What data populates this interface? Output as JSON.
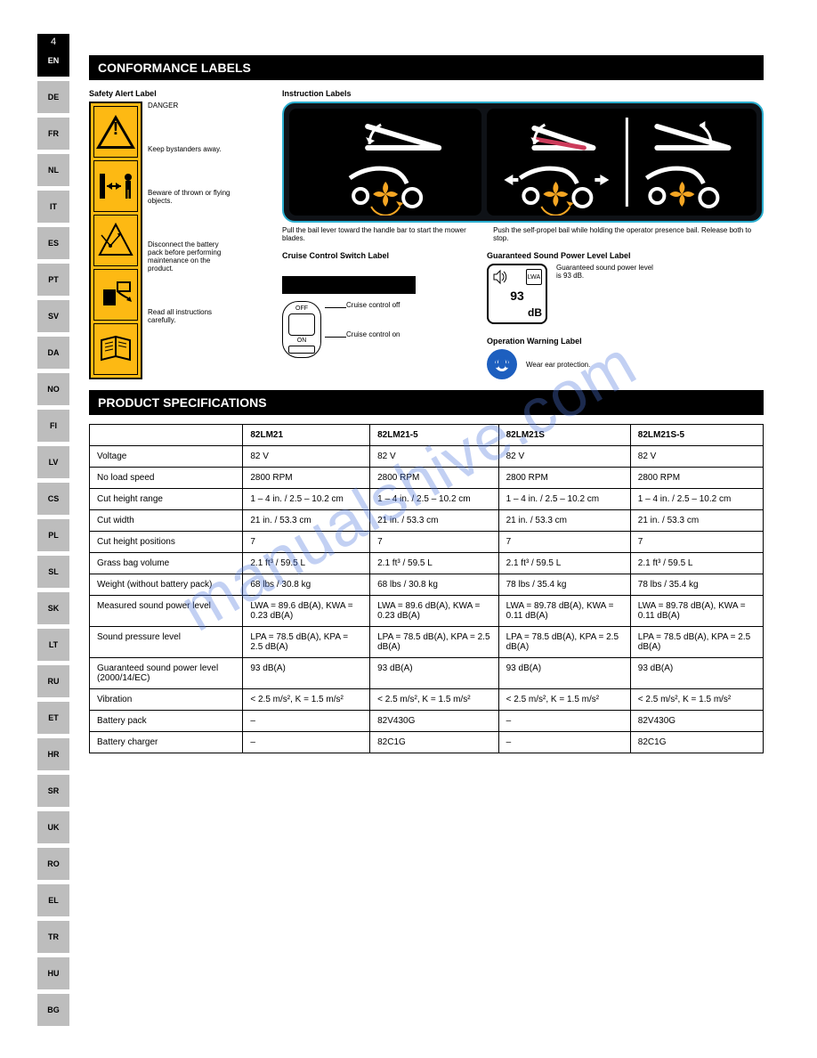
{
  "page_number": "4",
  "side_langs": [
    "EN",
    "DE",
    "FR",
    "NL",
    "IT",
    "ES",
    "PT",
    "SV",
    "DA",
    "NO",
    "FI",
    "LV",
    "CS",
    "PL",
    "SL",
    "SK",
    "LT",
    "RU",
    "ET",
    "HR",
    "SR",
    "UK",
    "RO",
    "EL",
    "TR",
    "HU",
    "BG"
  ],
  "section_labels_title": "CONFORMANCE LABELS",
  "section_specs_title": "PRODUCT SPECIFICATIONS",
  "watermark_text": "manualshive.com",
  "safety": {
    "heading": "Safety Alert Label",
    "items": [
      "DANGER",
      "Keep bystanders away.",
      "Beware of thrown or flying objects.",
      "Disconnect the battery pack before performing maintenance on the product.",
      "Read all instructions carefully."
    ]
  },
  "instr": {
    "heading": "Instruction Labels",
    "panel1_desc": "Pull the bail lever toward the handle bar to start the mower blades.",
    "panel2_desc": "Push the self-propel bail while holding the operator presence bail. Release both to stop."
  },
  "ccs": {
    "heading": "Cruise Control Switch Label",
    "off": "OFF",
    "on": "ON",
    "off_desc": "Cruise control off",
    "on_desc": "Cruise control on"
  },
  "noise": {
    "heading": "Guaranteed Sound Power Level Label",
    "lwa": "LWA",
    "value": "93",
    "db": "dB",
    "desc": "Guaranteed sound power level is 93 dB."
  },
  "earprot": {
    "heading": "Operation Warning Label",
    "desc": "Wear ear protection."
  },
  "specs": {
    "cols": [
      "",
      "82LM21",
      "82LM21-5",
      "82LM21S",
      "82LM21S-5"
    ],
    "rows": [
      [
        "Voltage",
        "82 V",
        "82 V",
        "82 V",
        "82 V"
      ],
      [
        "No load speed",
        "2800 RPM",
        "2800 RPM",
        "2800 RPM",
        "2800 RPM"
      ],
      [
        "Cut height range",
        "1 – 4 in. / 2.5 – 10.2 cm",
        "1 – 4 in. / 2.5 – 10.2 cm",
        "1 – 4 in. / 2.5 – 10.2 cm",
        "1 – 4 in. / 2.5 – 10.2 cm"
      ],
      [
        "Cut width",
        "21 in. / 53.3 cm",
        "21 in. / 53.3 cm",
        "21 in. / 53.3 cm",
        "21 in. / 53.3 cm"
      ],
      [
        "Cut height positions",
        "7",
        "7",
        "7",
        "7"
      ],
      [
        "Grass bag volume",
        "2.1 ft³ / 59.5 L",
        "2.1 ft³ / 59.5 L",
        "2.1 ft³ / 59.5 L",
        "2.1 ft³ / 59.5 L"
      ],
      [
        "Weight (without battery pack)",
        "68 lbs / 30.8 kg",
        "68 lbs / 30.8 kg",
        "78 lbs / 35.4 kg",
        "78 lbs / 35.4 kg"
      ],
      [
        "Measured sound power level",
        "LWA = 89.6 dB(A), KWA = 0.23 dB(A)",
        "LWA = 89.6 dB(A), KWA = 0.23 dB(A)",
        "LWA = 89.78 dB(A), KWA = 0.11 dB(A)",
        "LWA = 89.78 dB(A), KWA = 0.11 dB(A)"
      ],
      [
        "Sound pressure level",
        "LPA = 78.5 dB(A), KPA = 2.5 dB(A)",
        "LPA = 78.5 dB(A), KPA = 2.5 dB(A)",
        "LPA = 78.5 dB(A), KPA = 2.5 dB(A)",
        "LPA = 78.5 dB(A), KPA = 2.5 dB(A)"
      ],
      [
        "Guaranteed sound power level (2000/14/EC)",
        "93 dB(A)",
        "93 dB(A)",
        "93 dB(A)",
        "93 dB(A)"
      ],
      [
        "Vibration",
        "< 2.5 m/s², K = 1.5 m/s²",
        "< 2.5 m/s², K = 1.5 m/s²",
        "< 2.5 m/s², K = 1.5 m/s²",
        "< 2.5 m/s², K = 1.5 m/s²"
      ],
      [
        "Battery pack",
        "–",
        "82V430G",
        "–",
        "82V430G"
      ],
      [
        "Battery charger",
        "–",
        "82C1G",
        "–",
        "82C1G"
      ]
    ]
  }
}
